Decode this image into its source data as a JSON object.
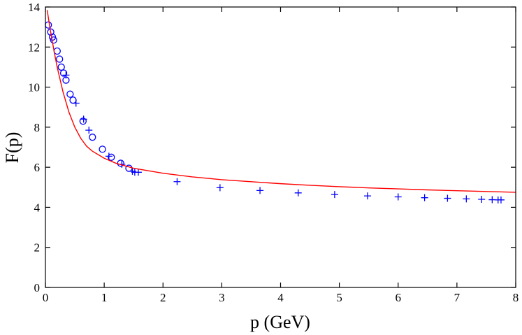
{
  "chart_data": {
    "type": "scatter",
    "xlabel": "p (GeV)",
    "ylabel": "F(p)",
    "xlim": [
      0,
      8
    ],
    "ylim": [
      0,
      14
    ],
    "xticks": [
      0,
      1,
      2,
      3,
      4,
      5,
      6,
      7,
      8
    ],
    "yticks": [
      0,
      2,
      4,
      6,
      8,
      10,
      12,
      14
    ],
    "grid": false,
    "legend": "none",
    "series": [
      {
        "marker": "circle",
        "color": "#0000ff",
        "points": [
          [
            0.05,
            13.1
          ],
          [
            0.09,
            12.75
          ],
          [
            0.12,
            12.5
          ],
          [
            0.14,
            12.35
          ],
          [
            0.2,
            11.8
          ],
          [
            0.24,
            11.4
          ],
          [
            0.27,
            11.0
          ],
          [
            0.31,
            10.7
          ],
          [
            0.35,
            10.35
          ],
          [
            0.42,
            9.65
          ],
          [
            0.47,
            9.35
          ],
          [
            0.64,
            8.3
          ],
          [
            0.8,
            7.5
          ],
          [
            0.97,
            6.9
          ],
          [
            1.12,
            6.5
          ],
          [
            1.28,
            6.2
          ],
          [
            1.42,
            5.95
          ]
        ]
      },
      {
        "marker": "plus",
        "color": "#0000ff",
        "points": [
          [
            0.35,
            10.6
          ],
          [
            0.52,
            9.2
          ],
          [
            0.65,
            8.4
          ],
          [
            0.74,
            7.85
          ],
          [
            1.08,
            6.55
          ],
          [
            1.3,
            6.15
          ],
          [
            1.48,
            5.8
          ],
          [
            1.52,
            5.75
          ],
          [
            1.58,
            5.75
          ],
          [
            2.24,
            5.28
          ],
          [
            2.97,
            4.98
          ],
          [
            3.65,
            4.84
          ],
          [
            4.3,
            4.72
          ],
          [
            4.92,
            4.64
          ],
          [
            5.48,
            4.57
          ],
          [
            6.0,
            4.52
          ],
          [
            6.45,
            4.48
          ],
          [
            6.84,
            4.45
          ],
          [
            7.16,
            4.42
          ],
          [
            7.42,
            4.4
          ],
          [
            7.6,
            4.38
          ],
          [
            7.7,
            4.37
          ],
          [
            7.75,
            4.37
          ]
        ]
      },
      {
        "marker": "line",
        "color": "#ff0000",
        "points": [
          [
            0.03,
            13.85
          ],
          [
            0.08,
            12.9
          ],
          [
            0.15,
            11.75
          ],
          [
            0.2,
            11.0
          ],
          [
            0.3,
            9.75
          ],
          [
            0.4,
            8.75
          ],
          [
            0.5,
            8.0
          ],
          [
            0.6,
            7.45
          ],
          [
            0.7,
            7.05
          ],
          [
            0.8,
            6.8
          ],
          [
            1.0,
            6.45
          ],
          [
            1.2,
            6.2
          ],
          [
            1.5,
            5.95
          ],
          [
            2.0,
            5.7
          ],
          [
            2.5,
            5.52
          ],
          [
            3.0,
            5.38
          ],
          [
            3.5,
            5.28
          ],
          [
            4.0,
            5.18
          ],
          [
            4.5,
            5.1
          ],
          [
            5.0,
            5.03
          ],
          [
            5.5,
            4.97
          ],
          [
            6.0,
            4.92
          ],
          [
            6.5,
            4.87
          ],
          [
            7.0,
            4.83
          ],
          [
            7.5,
            4.79
          ],
          [
            8.0,
            4.75
          ]
        ]
      }
    ]
  }
}
